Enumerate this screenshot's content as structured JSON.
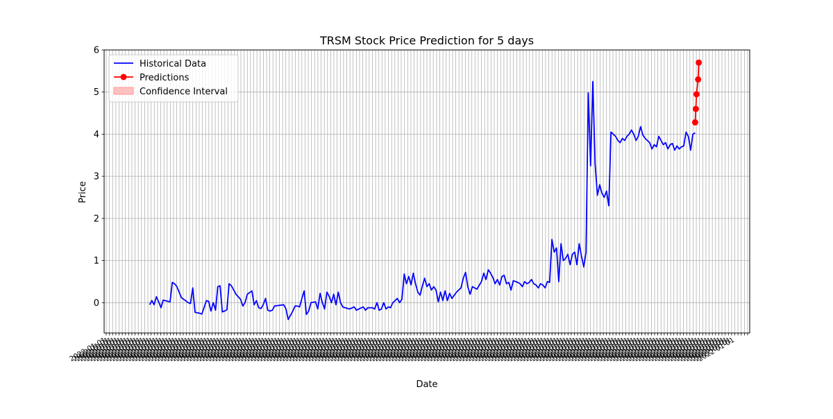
{
  "chart_data": {
    "type": "line",
    "title": "TRSM Stock Price Prediction for 5 days",
    "xlabel": "Date",
    "ylabel": "Price",
    "ylim": [
      -0.72,
      6.0
    ],
    "yticks": [
      0,
      1,
      2,
      3,
      4,
      5,
      6
    ],
    "grid": true,
    "legend_position": "top-left",
    "x_tick_labels_note": "dense overlapping date labels, rotated",
    "legend": [
      {
        "label": "Historical Data",
        "style": "line",
        "color": "#0000ff"
      },
      {
        "label": "Predictions",
        "style": "line-marker",
        "color": "#ff0000"
      },
      {
        "label": "Confidence Interval",
        "style": "patch",
        "color": "#ffc0c0"
      }
    ],
    "series": [
      {
        "name": "Historical Data",
        "color": "#0000ff",
        "values": [
          [
            0,
            -0.05
          ],
          [
            1,
            0.05
          ],
          [
            2,
            -0.05
          ],
          [
            3,
            0.14
          ],
          [
            4,
            0.02
          ],
          [
            5,
            -0.12
          ],
          [
            6,
            0.06
          ],
          [
            9,
            0.02
          ],
          [
            10,
            0.48
          ],
          [
            11,
            0.45
          ],
          [
            12,
            0.38
          ],
          [
            14,
            0.12
          ],
          [
            17,
            0.0
          ],
          [
            18,
            -0.02
          ],
          [
            19,
            0.35
          ],
          [
            20,
            -0.23
          ],
          [
            22,
            -0.25
          ],
          [
            23,
            -0.27
          ],
          [
            25,
            0.05
          ],
          [
            26,
            0.03
          ],
          [
            27,
            -0.2
          ],
          [
            28,
            0.0
          ],
          [
            29,
            -0.18
          ],
          [
            30,
            0.38
          ],
          [
            31,
            0.4
          ],
          [
            32,
            -0.22
          ],
          [
            33,
            -0.2
          ],
          [
            34,
            -0.17
          ],
          [
            35,
            0.45
          ],
          [
            36,
            0.4
          ],
          [
            38,
            0.2
          ],
          [
            40,
            0.08
          ],
          [
            41,
            -0.08
          ],
          [
            42,
            0.0
          ],
          [
            43,
            0.2
          ],
          [
            45,
            0.28
          ],
          [
            46,
            -0.05
          ],
          [
            47,
            0.05
          ],
          [
            48,
            -0.12
          ],
          [
            49,
            -0.14
          ],
          [
            50,
            -0.05
          ],
          [
            51,
            0.1
          ],
          [
            52,
            -0.18
          ],
          [
            53,
            -0.2
          ],
          [
            54,
            -0.18
          ],
          [
            55,
            -0.08
          ],
          [
            59,
            -0.05
          ],
          [
            60,
            -0.15
          ],
          [
            61,
            -0.4
          ],
          [
            63,
            -0.2
          ],
          [
            64,
            -0.08
          ],
          [
            65,
            -0.08
          ],
          [
            66,
            -0.1
          ],
          [
            67,
            0.1
          ],
          [
            68,
            0.28
          ],
          [
            69,
            -0.28
          ],
          [
            70,
            -0.2
          ],
          [
            71,
            0.0
          ],
          [
            73,
            0.02
          ],
          [
            74,
            -0.15
          ],
          [
            75,
            0.22
          ],
          [
            76,
            0.0
          ],
          [
            77,
            -0.15
          ],
          [
            78,
            0.25
          ],
          [
            79,
            0.15
          ],
          [
            80,
            0.0
          ],
          [
            81,
            0.2
          ],
          [
            82,
            -0.05
          ],
          [
            83,
            0.25
          ],
          [
            84,
            0.0
          ],
          [
            85,
            -0.1
          ],
          [
            86,
            -0.12
          ],
          [
            88,
            -0.15
          ],
          [
            90,
            -0.1
          ],
          [
            91,
            -0.18
          ],
          [
            92,
            -0.15
          ],
          [
            94,
            -0.1
          ],
          [
            95,
            -0.18
          ],
          [
            96,
            -0.12
          ],
          [
            98,
            -0.12
          ],
          [
            99,
            -0.15
          ],
          [
            100,
            0.0
          ],
          [
            101,
            -0.18
          ],
          [
            102,
            -0.15
          ],
          [
            103,
            0.0
          ],
          [
            104,
            -0.15
          ],
          [
            105,
            -0.1
          ],
          [
            106,
            -0.12
          ],
          [
            107,
            0.0
          ],
          [
            108,
            0.05
          ],
          [
            109,
            0.1
          ],
          [
            110,
            0.0
          ],
          [
            111,
            0.08
          ],
          [
            112,
            0.68
          ],
          [
            113,
            0.45
          ],
          [
            114,
            0.62
          ],
          [
            115,
            0.42
          ],
          [
            116,
            0.7
          ],
          [
            117,
            0.45
          ],
          [
            118,
            0.25
          ],
          [
            119,
            0.18
          ],
          [
            120,
            0.4
          ],
          [
            121,
            0.58
          ],
          [
            122,
            0.38
          ],
          [
            123,
            0.45
          ],
          [
            124,
            0.3
          ],
          [
            125,
            0.38
          ],
          [
            126,
            0.3
          ],
          [
            127,
            0.02
          ],
          [
            128,
            0.25
          ],
          [
            129,
            0.05
          ],
          [
            130,
            0.28
          ],
          [
            131,
            0.05
          ],
          [
            132,
            0.22
          ],
          [
            133,
            0.1
          ],
          [
            135,
            0.25
          ],
          [
            137,
            0.35
          ],
          [
            138,
            0.58
          ],
          [
            139,
            0.72
          ],
          [
            140,
            0.38
          ],
          [
            141,
            0.2
          ],
          [
            142,
            0.38
          ],
          [
            144,
            0.32
          ],
          [
            146,
            0.5
          ],
          [
            147,
            0.7
          ],
          [
            148,
            0.55
          ],
          [
            149,
            0.78
          ],
          [
            150,
            0.7
          ],
          [
            151,
            0.6
          ],
          [
            152,
            0.45
          ],
          [
            153,
            0.55
          ],
          [
            154,
            0.42
          ],
          [
            155,
            0.62
          ],
          [
            156,
            0.65
          ],
          [
            157,
            0.45
          ],
          [
            158,
            0.48
          ],
          [
            159,
            0.3
          ],
          [
            160,
            0.52
          ],
          [
            161,
            0.5
          ],
          [
            162,
            0.48
          ],
          [
            163,
            0.45
          ],
          [
            164,
            0.38
          ],
          [
            165,
            0.5
          ],
          [
            166,
            0.45
          ],
          [
            167,
            0.48
          ],
          [
            168,
            0.55
          ],
          [
            169,
            0.45
          ],
          [
            170,
            0.42
          ],
          [
            171,
            0.35
          ],
          [
            172,
            0.45
          ],
          [
            173,
            0.42
          ],
          [
            174,
            0.35
          ],
          [
            175,
            0.5
          ],
          [
            176,
            0.48
          ],
          [
            177,
            1.5
          ],
          [
            178,
            1.2
          ],
          [
            179,
            1.3
          ],
          [
            180,
            0.5
          ],
          [
            181,
            1.4
          ],
          [
            182,
            1.0
          ],
          [
            183,
            1.05
          ],
          [
            184,
            1.15
          ],
          [
            185,
            0.9
          ],
          [
            186,
            1.15
          ],
          [
            187,
            1.2
          ],
          [
            188,
            0.9
          ],
          [
            189,
            1.4
          ],
          [
            190,
            1.1
          ],
          [
            191,
            0.85
          ],
          [
            192,
            1.2
          ],
          [
            193,
            4.98
          ],
          [
            194,
            3.25
          ],
          [
            195,
            5.25
          ],
          [
            196,
            3.3
          ],
          [
            197,
            2.55
          ],
          [
            198,
            2.8
          ],
          [
            199,
            2.6
          ],
          [
            200,
            2.5
          ],
          [
            201,
            2.65
          ],
          [
            202,
            2.3
          ],
          [
            203,
            4.05
          ],
          [
            204,
            4.0
          ],
          [
            205,
            3.95
          ],
          [
            206,
            3.85
          ],
          [
            207,
            3.8
          ],
          [
            208,
            3.9
          ],
          [
            209,
            3.85
          ],
          [
            210,
            3.95
          ],
          [
            211,
            4.0
          ],
          [
            212,
            4.1
          ],
          [
            213,
            4.0
          ],
          [
            214,
            3.85
          ],
          [
            215,
            3.95
          ],
          [
            216,
            4.18
          ],
          [
            217,
            3.98
          ],
          [
            218,
            3.9
          ],
          [
            219,
            3.85
          ],
          [
            220,
            3.8
          ],
          [
            221,
            3.65
          ],
          [
            222,
            3.75
          ],
          [
            223,
            3.7
          ],
          [
            224,
            3.95
          ],
          [
            225,
            3.85
          ],
          [
            226,
            3.75
          ],
          [
            227,
            3.8
          ],
          [
            228,
            3.65
          ],
          [
            229,
            3.75
          ],
          [
            230,
            3.78
          ],
          [
            231,
            3.62
          ],
          [
            232,
            3.72
          ],
          [
            233,
            3.65
          ],
          [
            234,
            3.7
          ],
          [
            235,
            3.72
          ],
          [
            236,
            4.05
          ],
          [
            237,
            3.95
          ],
          [
            238,
            3.62
          ],
          [
            239,
            4.0
          ],
          [
            240,
            4.03
          ]
        ]
      },
      {
        "name": "Predictions",
        "color": "#ff0000",
        "values": [
          [
            240,
            4.28
          ],
          [
            240.3,
            4.6
          ],
          [
            240.6,
            4.95
          ],
          [
            241.3,
            5.3
          ],
          [
            241.6,
            5.7
          ]
        ]
      }
    ]
  }
}
